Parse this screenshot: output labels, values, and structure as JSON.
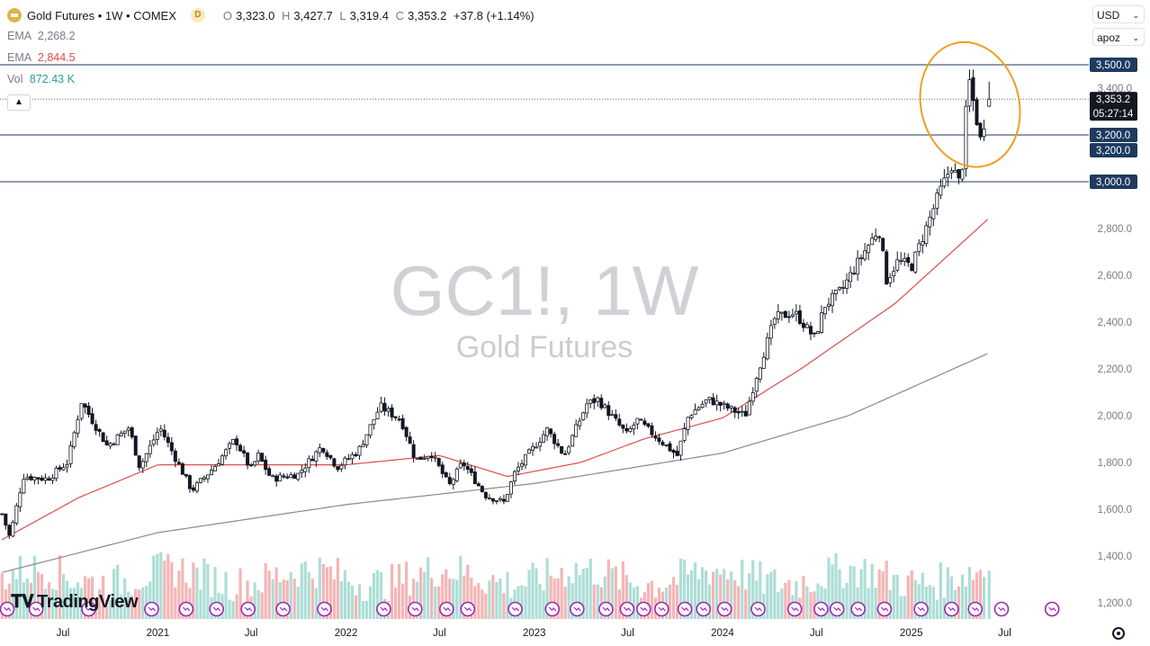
{
  "header": {
    "symbol_title": "Gold Futures • 1W • COMEX",
    "interval_badge": "D",
    "open_label": "O",
    "open": "3,323.0",
    "high_label": "H",
    "high": "3,427.7",
    "low_label": "L",
    "low": "3,319.4",
    "close_label": "C",
    "close": "3,353.2",
    "change": "+37.8 (+1.14%)"
  },
  "indicators": [
    {
      "label": "EMA",
      "value": "2,268.2",
      "color": "#787b86"
    },
    {
      "label": "EMA",
      "value": "2,844.5",
      "color": "#e04b4b"
    },
    {
      "label": "Vol",
      "value": "872.43 K",
      "color": "#2a9d8f"
    }
  ],
  "controls": {
    "currency": "USD",
    "scale_mode": "apoz"
  },
  "watermark": {
    "symbol": "GC1!, 1W",
    "name": "Gold Futures"
  },
  "brand": "TradingView",
  "colors": {
    "up": "#131722",
    "down": "#131722",
    "ema_fast": "#e04b4b",
    "ema_slow": "#8a8a8a",
    "hline": "#1e3a5f",
    "tag": "#1e3a5f",
    "circle": "#f0a020",
    "vol_up": "#9fd8cf",
    "vol_down": "#f2a9a9"
  },
  "chart_data": {
    "type": "candlestick",
    "y_axis": {
      "ticks": [
        1200,
        1400,
        1600,
        1800,
        2000,
        2200,
        2400,
        2600,
        2800,
        3000,
        3200,
        3400
      ],
      "tick_labels": [
        "1,200.0",
        "1,400.0",
        "1,600.0",
        "1,800.0",
        "2,000.0",
        "2,200.0",
        "2,400.0",
        "2,600.0",
        "2,800.0",
        "3,000.0",
        "3,200.0",
        "3,400.0"
      ],
      "range": [
        1130,
        3750
      ]
    },
    "x_axis": {
      "labels": [
        "Jul",
        "2021",
        "Jul",
        "2022",
        "Jul",
        "2023",
        "Jul",
        "2024",
        "Jul",
        "2025",
        "Jul"
      ],
      "label_positions": [
        "2020-07-01",
        "2021-01-01",
        "2021-07-01",
        "2022-01-01",
        "2022-07-01",
        "2023-01-01",
        "2023-07-01",
        "2024-01-01",
        "2024-07-01",
        "2025-01-01",
        "2025-07-01"
      ],
      "range": [
        "2020-03-01",
        "2025-09-15"
      ]
    },
    "price_keypoints": [
      [
        "2020-03-05",
        1580
      ],
      [
        "2020-03-20",
        1480
      ],
      [
        "2020-04-15",
        1740
      ],
      [
        "2020-06-01",
        1730
      ],
      [
        "2020-07-10",
        1800
      ],
      [
        "2020-08-06",
        2060
      ],
      [
        "2020-09-25",
        1870
      ],
      [
        "2020-11-06",
        1950
      ],
      [
        "2020-11-27",
        1780
      ],
      [
        "2021-01-05",
        1950
      ],
      [
        "2021-03-08",
        1680
      ],
      [
        "2021-04-20",
        1780
      ],
      [
        "2021-05-31",
        1900
      ],
      [
        "2021-06-30",
        1770
      ],
      [
        "2021-07-15",
        1830
      ],
      [
        "2021-08-09",
        1730
      ],
      [
        "2021-09-30",
        1750
      ],
      [
        "2021-11-15",
        1870
      ],
      [
        "2021-12-15",
        1780
      ],
      [
        "2022-01-25",
        1850
      ],
      [
        "2022-03-08",
        2040
      ],
      [
        "2022-04-18",
        1980
      ],
      [
        "2022-05-16",
        1810
      ],
      [
        "2022-06-15",
        1840
      ],
      [
        "2022-07-20",
        1700
      ],
      [
        "2022-08-15",
        1800
      ],
      [
        "2022-09-28",
        1660
      ],
      [
        "2022-11-03",
        1630
      ],
      [
        "2022-11-25",
        1760
      ],
      [
        "2023-01-26",
        1940
      ],
      [
        "2023-02-28",
        1830
      ],
      [
        "2023-04-13",
        2050
      ],
      [
        "2023-05-04",
        2070
      ],
      [
        "2023-06-29",
        1920
      ],
      [
        "2023-07-20",
        1980
      ],
      [
        "2023-10-05",
        1830
      ],
      [
        "2023-10-27",
        2000
      ],
      [
        "2023-12-04",
        2070
      ],
      [
        "2024-02-14",
        2000
      ],
      [
        "2024-03-08",
        2180
      ],
      [
        "2024-04-12",
        2420
      ],
      [
        "2024-05-20",
        2440
      ],
      [
        "2024-06-28",
        2330
      ],
      [
        "2024-07-17",
        2470
      ],
      [
        "2024-08-20",
        2540
      ],
      [
        "2024-09-26",
        2680
      ],
      [
        "2024-10-30",
        2800
      ],
      [
        "2024-11-14",
        2580
      ],
      [
        "2024-12-06",
        2660
      ],
      [
        "2025-01-02",
        2640
      ],
      [
        "2025-02-24",
        2950
      ],
      [
        "2025-03-20",
        3070
      ],
      [
        "2025-04-07",
        2980
      ],
      [
        "2025-04-22",
        3450
      ],
      [
        "2025-05-15",
        3180
      ],
      [
        "2025-06-01",
        3353
      ]
    ],
    "last_candle": {
      "open": 3323.0,
      "high": 3427.7,
      "low": 3319.4,
      "close": 3353.2
    },
    "ema_slow_keypoints": [
      [
        "2020-03-05",
        1330
      ],
      [
        "2021-01-01",
        1500
      ],
      [
        "2022-01-01",
        1620
      ],
      [
        "2023-01-01",
        1710
      ],
      [
        "2024-01-01",
        1840
      ],
      [
        "2024-09-01",
        2000
      ],
      [
        "2025-06-01",
        2268.2
      ]
    ],
    "ema_fast_keypoints": [
      [
        "2020-03-05",
        1470
      ],
      [
        "2020-08-01",
        1650
      ],
      [
        "2021-01-01",
        1790
      ],
      [
        "2022-01-01",
        1790
      ],
      [
        "2022-07-01",
        1830
      ],
      [
        "2022-11-10",
        1740
      ],
      [
        "2023-04-01",
        1800
      ],
      [
        "2023-08-01",
        1900
      ],
      [
        "2024-01-01",
        1990
      ],
      [
        "2024-06-01",
        2200
      ],
      [
        "2024-12-01",
        2480
      ],
      [
        "2025-06-01",
        2844.5
      ]
    ],
    "horizontal_levels": [
      {
        "value": 3500,
        "label": "3,500.0"
      },
      {
        "value": 3200,
        "label": "3,200.0"
      },
      {
        "value": 3000,
        "label": "3,000.0"
      }
    ],
    "price_tags": [
      {
        "value": 3353.2,
        "label": "3,353.2",
        "sublabel": "05:27:14",
        "style": "last"
      },
      {
        "value": 3200,
        "label": "3,200.0",
        "style": "level"
      }
    ],
    "highlight_ellipse": {
      "center": [
        "2025-04-25",
        3330
      ],
      "date_radius_days": 95,
      "price_radius": 270
    },
    "volume_panel": {
      "series_name": "Vol",
      "last_value": "872.43 K"
    }
  }
}
